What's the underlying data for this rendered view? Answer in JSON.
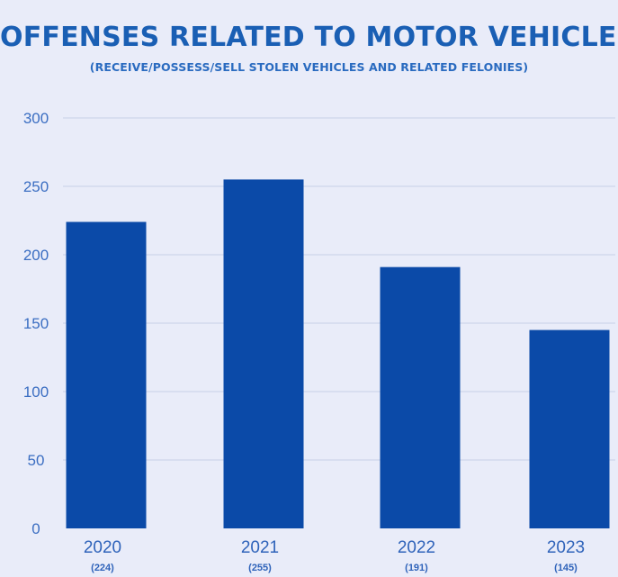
{
  "chart_data": {
    "type": "bar",
    "title": "OFFENSES RELATED TO MOTOR VEHICLES",
    "subtitle": "(RECEIVE/POSSESS/SELL STOLEN VEHICLES AND RELATED FELONIES)",
    "categories": [
      "2020",
      "2021",
      "2022",
      "2023"
    ],
    "value_labels": [
      "(224)",
      "(255)",
      "(191)",
      "(145)"
    ],
    "values": [
      224,
      255,
      191,
      145
    ],
    "ylim": [
      0,
      300
    ],
    "yticks": [
      0,
      50,
      100,
      150,
      200,
      250,
      300
    ],
    "xlabel": "",
    "ylabel": "",
    "grid": true,
    "colors": {
      "bar": "#0b4aa8",
      "grid": "#c8d0e6",
      "tick_text": "#3b6ec2",
      "category_text": "#2f63ba",
      "title": "#1a5fb4",
      "background": "#e9ecf9"
    }
  }
}
